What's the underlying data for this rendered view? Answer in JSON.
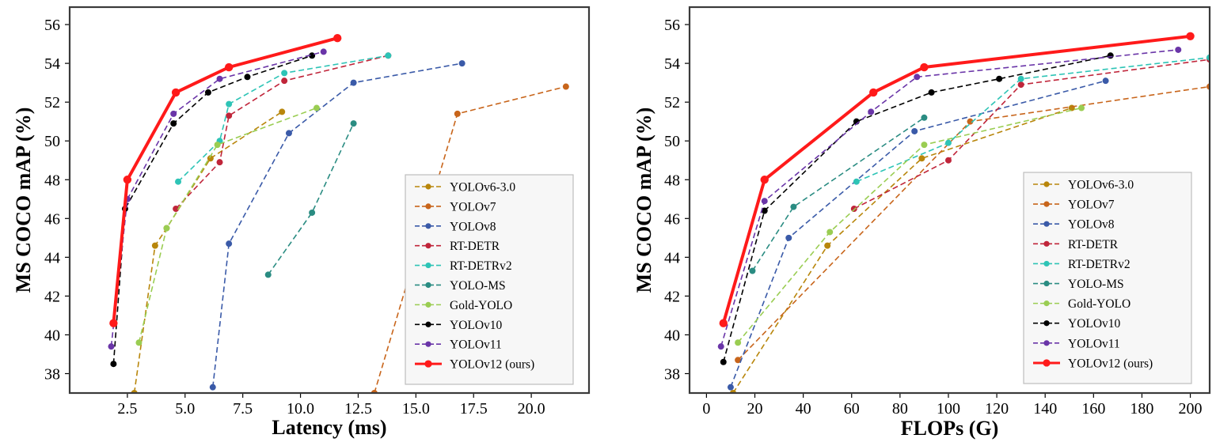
{
  "chart_data": [
    {
      "type": "line",
      "xlabel": "Latency (ms)",
      "ylabel": "MS COCO mAP (%)",
      "xlim": [
        0,
        22.5
      ],
      "ylim": [
        37,
        56.9
      ],
      "xticks": [
        2.5,
        5.0,
        7.5,
        10.0,
        12.5,
        15.0,
        17.5,
        20.0
      ],
      "xtick_labels": [
        "2.5",
        "5.0",
        "7.5",
        "10.0",
        "12.5",
        "15.0",
        "17.5",
        "20.0"
      ],
      "yticks": [
        38,
        40,
        42,
        44,
        46,
        48,
        50,
        52,
        54,
        56
      ],
      "ytick_labels": [
        "38",
        "40",
        "42",
        "44",
        "46",
        "48",
        "50",
        "52",
        "54",
        "56"
      ],
      "legend_position": "lower-right",
      "series": [
        {
          "name": "YOLOv6-3.0",
          "color": "#b8860b",
          "style": "dashed",
          "x": [
            2.8,
            3.7,
            4.2,
            6.1,
            9.2
          ],
          "y": [
            37.0,
            44.6,
            45.5,
            49.1,
            51.5
          ]
        },
        {
          "name": "YOLOv7",
          "color": "#c8651b",
          "style": "dashed",
          "x": [
            13.2,
            16.8,
            21.5
          ],
          "y": [
            37.0,
            51.4,
            52.8
          ]
        },
        {
          "name": "YOLOv8",
          "color": "#3a5aa8",
          "style": "dashed",
          "x": [
            6.2,
            6.9,
            9.5,
            12.3,
            17.0
          ],
          "y": [
            37.3,
            44.7,
            50.4,
            53.0,
            54.0
          ]
        },
        {
          "name": "RT-DETR",
          "color": "#c0253a",
          "style": "dashed",
          "x": [
            4.6,
            6.5,
            6.9,
            9.3,
            13.8
          ],
          "y": [
            46.5,
            48.9,
            51.3,
            53.1,
            54.4
          ]
        },
        {
          "name": "RT-DETRv2",
          "color": "#2ec4b6",
          "style": "dashed",
          "x": [
            4.7,
            6.5,
            6.9,
            9.3,
            13.8
          ],
          "y": [
            47.9,
            50.0,
            51.9,
            53.5,
            54.4
          ]
        },
        {
          "name": "YOLO-MS",
          "color": "#2a8c82",
          "style": "dashed",
          "x": [
            8.6,
            10.5,
            12.3
          ],
          "y": [
            43.1,
            46.3,
            50.9
          ]
        },
        {
          "name": "Gold-YOLO",
          "color": "#9acd52",
          "style": "dashed",
          "x": [
            3.0,
            4.2,
            6.4,
            10.7
          ],
          "y": [
            39.6,
            45.5,
            49.8,
            51.7
          ]
        },
        {
          "name": "YOLOv10",
          "color": "#000000",
          "style": "dashed",
          "x": [
            1.9,
            2.4,
            4.5,
            6.0,
            7.7,
            10.5
          ],
          "y": [
            38.5,
            46.5,
            50.9,
            52.5,
            53.3,
            54.4
          ]
        },
        {
          "name": "YOLOv11",
          "color": "#6a35a8",
          "style": "dashed",
          "x": [
            1.8,
            2.5,
            4.5,
            6.5,
            11.0
          ],
          "y": [
            39.4,
            47.0,
            51.4,
            53.2,
            54.6
          ]
        },
        {
          "name": "YOLOv12 (ours)",
          "color": "#ff1a1a",
          "style": "solid",
          "x": [
            1.9,
            2.5,
            4.6,
            6.9,
            11.6
          ],
          "y": [
            40.6,
            48.0,
            52.5,
            53.8,
            55.3
          ]
        }
      ]
    },
    {
      "type": "line",
      "xlabel": "FLOPs (G)",
      "ylabel": "MS COCO mAP (%)",
      "xlim": [
        -7,
        208
      ],
      "ylim": [
        37,
        56.9
      ],
      "xticks": [
        0,
        20,
        40,
        60,
        80,
        100,
        120,
        140,
        160,
        180,
        200
      ],
      "xtick_labels": [
        "0",
        "20",
        "40",
        "60",
        "80",
        "100",
        "120",
        "140",
        "160",
        "180",
        "200"
      ],
      "yticks": [
        38,
        40,
        42,
        44,
        46,
        48,
        50,
        52,
        54,
        56
      ],
      "ytick_labels": [
        "38",
        "40",
        "42",
        "44",
        "46",
        "48",
        "50",
        "52",
        "54",
        "56"
      ],
      "legend_position": "lower-right",
      "series": [
        {
          "name": "YOLOv6-3.0",
          "color": "#b8860b",
          "style": "dashed",
          "x": [
            11,
            50,
            89,
            151
          ],
          "y": [
            37.0,
            44.6,
            49.1,
            51.7
          ]
        },
        {
          "name": "YOLOv7",
          "color": "#c8651b",
          "style": "dashed",
          "x": [
            13,
            109,
            208
          ],
          "y": [
            38.7,
            51.0,
            52.8
          ]
        },
        {
          "name": "YOLOv8",
          "color": "#3a5aa8",
          "style": "dashed",
          "x": [
            10,
            34,
            86,
            165
          ],
          "y": [
            37.3,
            45.0,
            50.5,
            53.1
          ]
        },
        {
          "name": "RT-DETR",
          "color": "#c0253a",
          "style": "dashed",
          "x": [
            61,
            100,
            130,
            208
          ],
          "y": [
            46.5,
            49.0,
            52.9,
            54.2
          ]
        },
        {
          "name": "RT-DETRv2",
          "color": "#2ec4b6",
          "style": "dashed",
          "x": [
            62,
            100,
            130,
            208
          ],
          "y": [
            47.9,
            49.9,
            53.2,
            54.3
          ]
        },
        {
          "name": "YOLO-MS",
          "color": "#2a8c82",
          "style": "dashed",
          "x": [
            19,
            36,
            90
          ],
          "y": [
            43.3,
            46.6,
            51.2
          ]
        },
        {
          "name": "Gold-YOLO",
          "color": "#9acd52",
          "style": "dashed",
          "x": [
            13,
            51,
            90,
            155
          ],
          "y": [
            39.6,
            45.3,
            49.8,
            51.7
          ]
        },
        {
          "name": "YOLOv10",
          "color": "#000000",
          "style": "dashed",
          "x": [
            7,
            24,
            62,
            93,
            121,
            167
          ],
          "y": [
            38.6,
            46.4,
            51.0,
            52.5,
            53.2,
            54.4
          ]
        },
        {
          "name": "YOLOv11",
          "color": "#6a35a8",
          "style": "dashed",
          "x": [
            6,
            24,
            68,
            87,
            195
          ],
          "y": [
            39.4,
            46.9,
            51.5,
            53.3,
            54.7
          ]
        },
        {
          "name": "YOLOv12 (ours)",
          "color": "#ff1a1a",
          "style": "solid",
          "x": [
            7,
            24,
            69,
            90,
            200
          ],
          "y": [
            40.6,
            48.0,
            52.5,
            53.8,
            55.4
          ]
        }
      ]
    }
  ]
}
